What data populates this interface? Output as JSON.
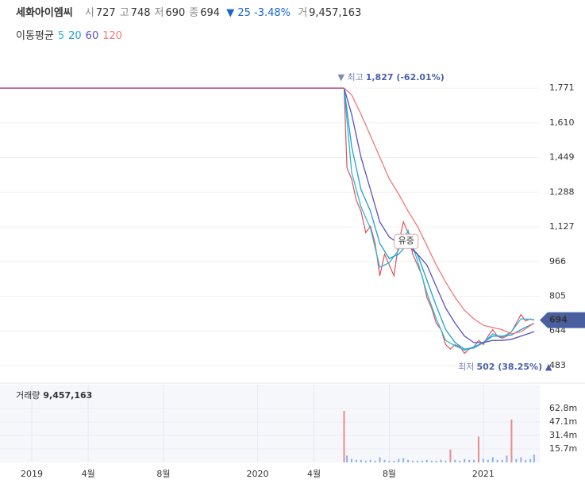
{
  "header": {
    "name": "세화아이엠씨",
    "items": [
      {
        "label": "시",
        "value": 727
      },
      {
        "label": "고",
        "value": 748
      },
      {
        "label": "저",
        "value": 690
      },
      {
        "label": "종",
        "value": 694
      }
    ],
    "change": "▼ 25",
    "change_pct": "-3.48%",
    "volume_label": "거",
    "volume": "9,457,163"
  },
  "chart_data": {
    "type": "line",
    "ma_title": "이동평균",
    "xlim": [
      -1.69,
      27.0
    ],
    "xticks": [
      {
        "value": 0,
        "label": "2019"
      },
      {
        "value": 3,
        "label": "4월"
      },
      {
        "value": 7,
        "label": "8월"
      },
      {
        "value": 12,
        "label": "2020"
      },
      {
        "value": 15,
        "label": "4월"
      },
      {
        "value": 19,
        "label": "8월"
      },
      {
        "value": 24,
        "label": "2021"
      }
    ],
    "ylim": [
      413,
      1867
    ],
    "yticks": [
      483,
      {
        "value": 644,
        "label": "644"
      },
      {
        "value": 805,
        "label": "805"
      },
      {
        "value": 966,
        "label": "966"
      },
      {
        "value": 1127,
        "label": "1,127"
      },
      {
        "value": 1288,
        "label": "1,288"
      },
      {
        "value": 1449,
        "label": "1,449"
      },
      {
        "value": 1610,
        "label": "1,610"
      },
      {
        "value": 1771,
        "label": "1,771"
      }
    ],
    "ref_line": {
      "value": 1771,
      "color": "#b04a7c"
    },
    "close": {
      "color": "#e0505a",
      "x": [
        16.6,
        16.75,
        17.0,
        17.25,
        17.5,
        17.75,
        18.0,
        18.25,
        18.5,
        18.75,
        19.0,
        19.25,
        19.5,
        19.75,
        20.0,
        20.25,
        20.5,
        20.75,
        21.0,
        21.25,
        21.5,
        21.75,
        22.0,
        22.25,
        22.5,
        22.75,
        23.0,
        23.25,
        23.5,
        23.75,
        24.0,
        24.25,
        24.5,
        24.75,
        25.0,
        25.25,
        25.5,
        25.75,
        26.0,
        26.25,
        26.5,
        26.7
      ],
      "values": [
        1771,
        1400,
        1350,
        1250,
        1200,
        1100,
        1130,
        1050,
        900,
        1000,
        950,
        900,
        1050,
        1150,
        1100,
        1000,
        950,
        900,
        800,
        750,
        680,
        650,
        580,
        560,
        580,
        570,
        540,
        560,
        570,
        600,
        580,
        620,
        650,
        620,
        610,
        620,
        640,
        680,
        720,
        690,
        700,
        694
      ]
    },
    "series": [
      {
        "name": "5",
        "color": "#2fb8d0",
        "x": [
          16.6,
          17.0,
          17.5,
          18.0,
          18.5,
          19.0,
          19.5,
          20.0,
          20.5,
          21.0,
          21.5,
          22.0,
          22.5,
          23.0,
          23.5,
          24.0,
          24.5,
          25.0,
          25.5,
          26.0,
          26.7
        ],
        "values": [
          1771,
          1380,
          1220,
          1120,
          940,
          960,
          1020,
          1110,
          970,
          820,
          700,
          600,
          575,
          555,
          570,
          590,
          630,
          615,
          640,
          700,
          697
        ]
      },
      {
        "name": "20",
        "color": "#1e9fd4",
        "x": [
          16.6,
          17.0,
          17.5,
          18.0,
          18.5,
          19.0,
          19.5,
          20.0,
          20.5,
          21.0,
          21.5,
          22.0,
          22.5,
          23.0,
          23.5,
          24.0,
          24.5,
          25.0,
          25.5,
          26.0,
          26.7
        ],
        "values": [
          1771,
          1500,
          1300,
          1200,
          1050,
          980,
          1000,
          1050,
          1000,
          880,
          760,
          650,
          590,
          560,
          565,
          590,
          620,
          620,
          625,
          650,
          680
        ]
      },
      {
        "name": "60",
        "color": "#5b4fc4",
        "x": [
          16.6,
          17.0,
          17.5,
          18.0,
          18.5,
          19.0,
          19.5,
          20.0,
          20.5,
          21.0,
          21.5,
          22.0,
          22.5,
          23.0,
          23.5,
          24.0,
          24.5,
          25.0,
          25.5,
          26.0,
          26.7
        ],
        "values": [
          1771,
          1650,
          1450,
          1300,
          1150,
          1080,
          1050,
          1040,
          1000,
          950,
          850,
          750,
          680,
          620,
          590,
          590,
          600,
          600,
          605,
          620,
          640
        ]
      },
      {
        "name": "120",
        "color": "#f07878",
        "x": [
          16.6,
          17.0,
          17.5,
          18.0,
          18.5,
          19.0,
          19.5,
          20.0,
          20.5,
          21.0,
          21.5,
          22.0,
          22.5,
          23.0,
          23.5,
          24.0,
          24.5,
          25.0,
          25.5,
          26.0,
          26.7
        ],
        "values": [
          1771,
          1740,
          1650,
          1550,
          1450,
          1350,
          1280,
          1200,
          1130,
          1040,
          950,
          870,
          800,
          740,
          700,
          670,
          660,
          650,
          630,
          640,
          680
        ]
      }
    ],
    "current_price": 694,
    "annotations": [
      {
        "x": 16.6,
        "y": 1827,
        "label": "▼ 최고",
        "value_label": "1,827 (-62.01%)"
      },
      {
        "x": 23.0,
        "y": 502,
        "label": "최저",
        "value_label": "502 (38.25%) ▲"
      },
      {
        "x": 19.9,
        "y": 1060,
        "label": "유증"
      }
    ],
    "volume": {
      "title": "거래량",
      "total": "9,457,163",
      "color": "#8ab4e8",
      "spike_color": "#f08a8a",
      "ylim": [
        0,
        90.5
      ],
      "yticks": [
        {
          "value": 15.7,
          "label": "15.7m"
        },
        {
          "value": 31.4,
          "label": "31.4m"
        },
        {
          "value": 47.1,
          "label": "47.1m"
        },
        {
          "value": 62.8,
          "label": "62.8m"
        }
      ],
      "x": [
        16.6,
        16.75,
        17.0,
        17.25,
        17.5,
        17.75,
        18.0,
        18.25,
        18.5,
        18.75,
        19.0,
        19.25,
        19.5,
        19.75,
        20.0,
        20.25,
        20.5,
        20.75,
        21.0,
        21.25,
        21.5,
        21.75,
        22.0,
        22.25,
        22.5,
        22.75,
        23.0,
        23.25,
        23.5,
        23.75,
        24.0,
        24.25,
        24.5,
        24.75,
        25.0,
        25.25,
        25.5,
        25.75,
        26.0,
        26.25,
        26.5,
        26.7
      ],
      "values": [
        60,
        8,
        4,
        3,
        3,
        2,
        3,
        2,
        6,
        3,
        2,
        2,
        4,
        5,
        3,
        2,
        2,
        2,
        3,
        2,
        2,
        3,
        2,
        15,
        3,
        2,
        4,
        3,
        3,
        30,
        4,
        3,
        6,
        3,
        3,
        8,
        50,
        4,
        6,
        3,
        4,
        9
      ]
    }
  }
}
